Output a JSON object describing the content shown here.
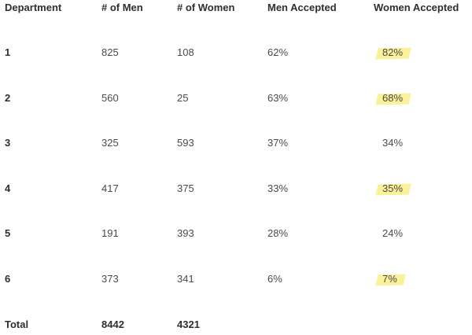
{
  "table": {
    "headers": [
      "Department",
      "# of Men",
      "# of Women",
      "Men Accepted",
      "Women Accepted"
    ],
    "rows": [
      {
        "department": "1",
        "men": "825",
        "women": "108",
        "men_accepted": "62%",
        "women_accepted": "82%",
        "highlighted": true
      },
      {
        "department": "2",
        "men": "560",
        "women": "25",
        "men_accepted": "63%",
        "women_accepted": "68%",
        "highlighted": true
      },
      {
        "department": "3",
        "men": "325",
        "women": "593",
        "men_accepted": "37%",
        "women_accepted": "34%",
        "highlighted": false
      },
      {
        "department": "4",
        "men": "417",
        "women": "375",
        "men_accepted": "33%",
        "women_accepted": "35%",
        "highlighted": true
      },
      {
        "department": "5",
        "men": "191",
        "women": "393",
        "men_accepted": "28%",
        "women_accepted": "24%",
        "highlighted": false
      },
      {
        "department": "6",
        "men": "373",
        "women": "341",
        "men_accepted": "6%",
        "women_accepted": "7%",
        "highlighted": true
      }
    ],
    "total": {
      "label": "Total",
      "men": "8442",
      "women": "4321"
    }
  },
  "colors": {
    "highlight": "#fbee8a",
    "text": "#3a3a3a",
    "header_text": "#2e2e2e"
  }
}
